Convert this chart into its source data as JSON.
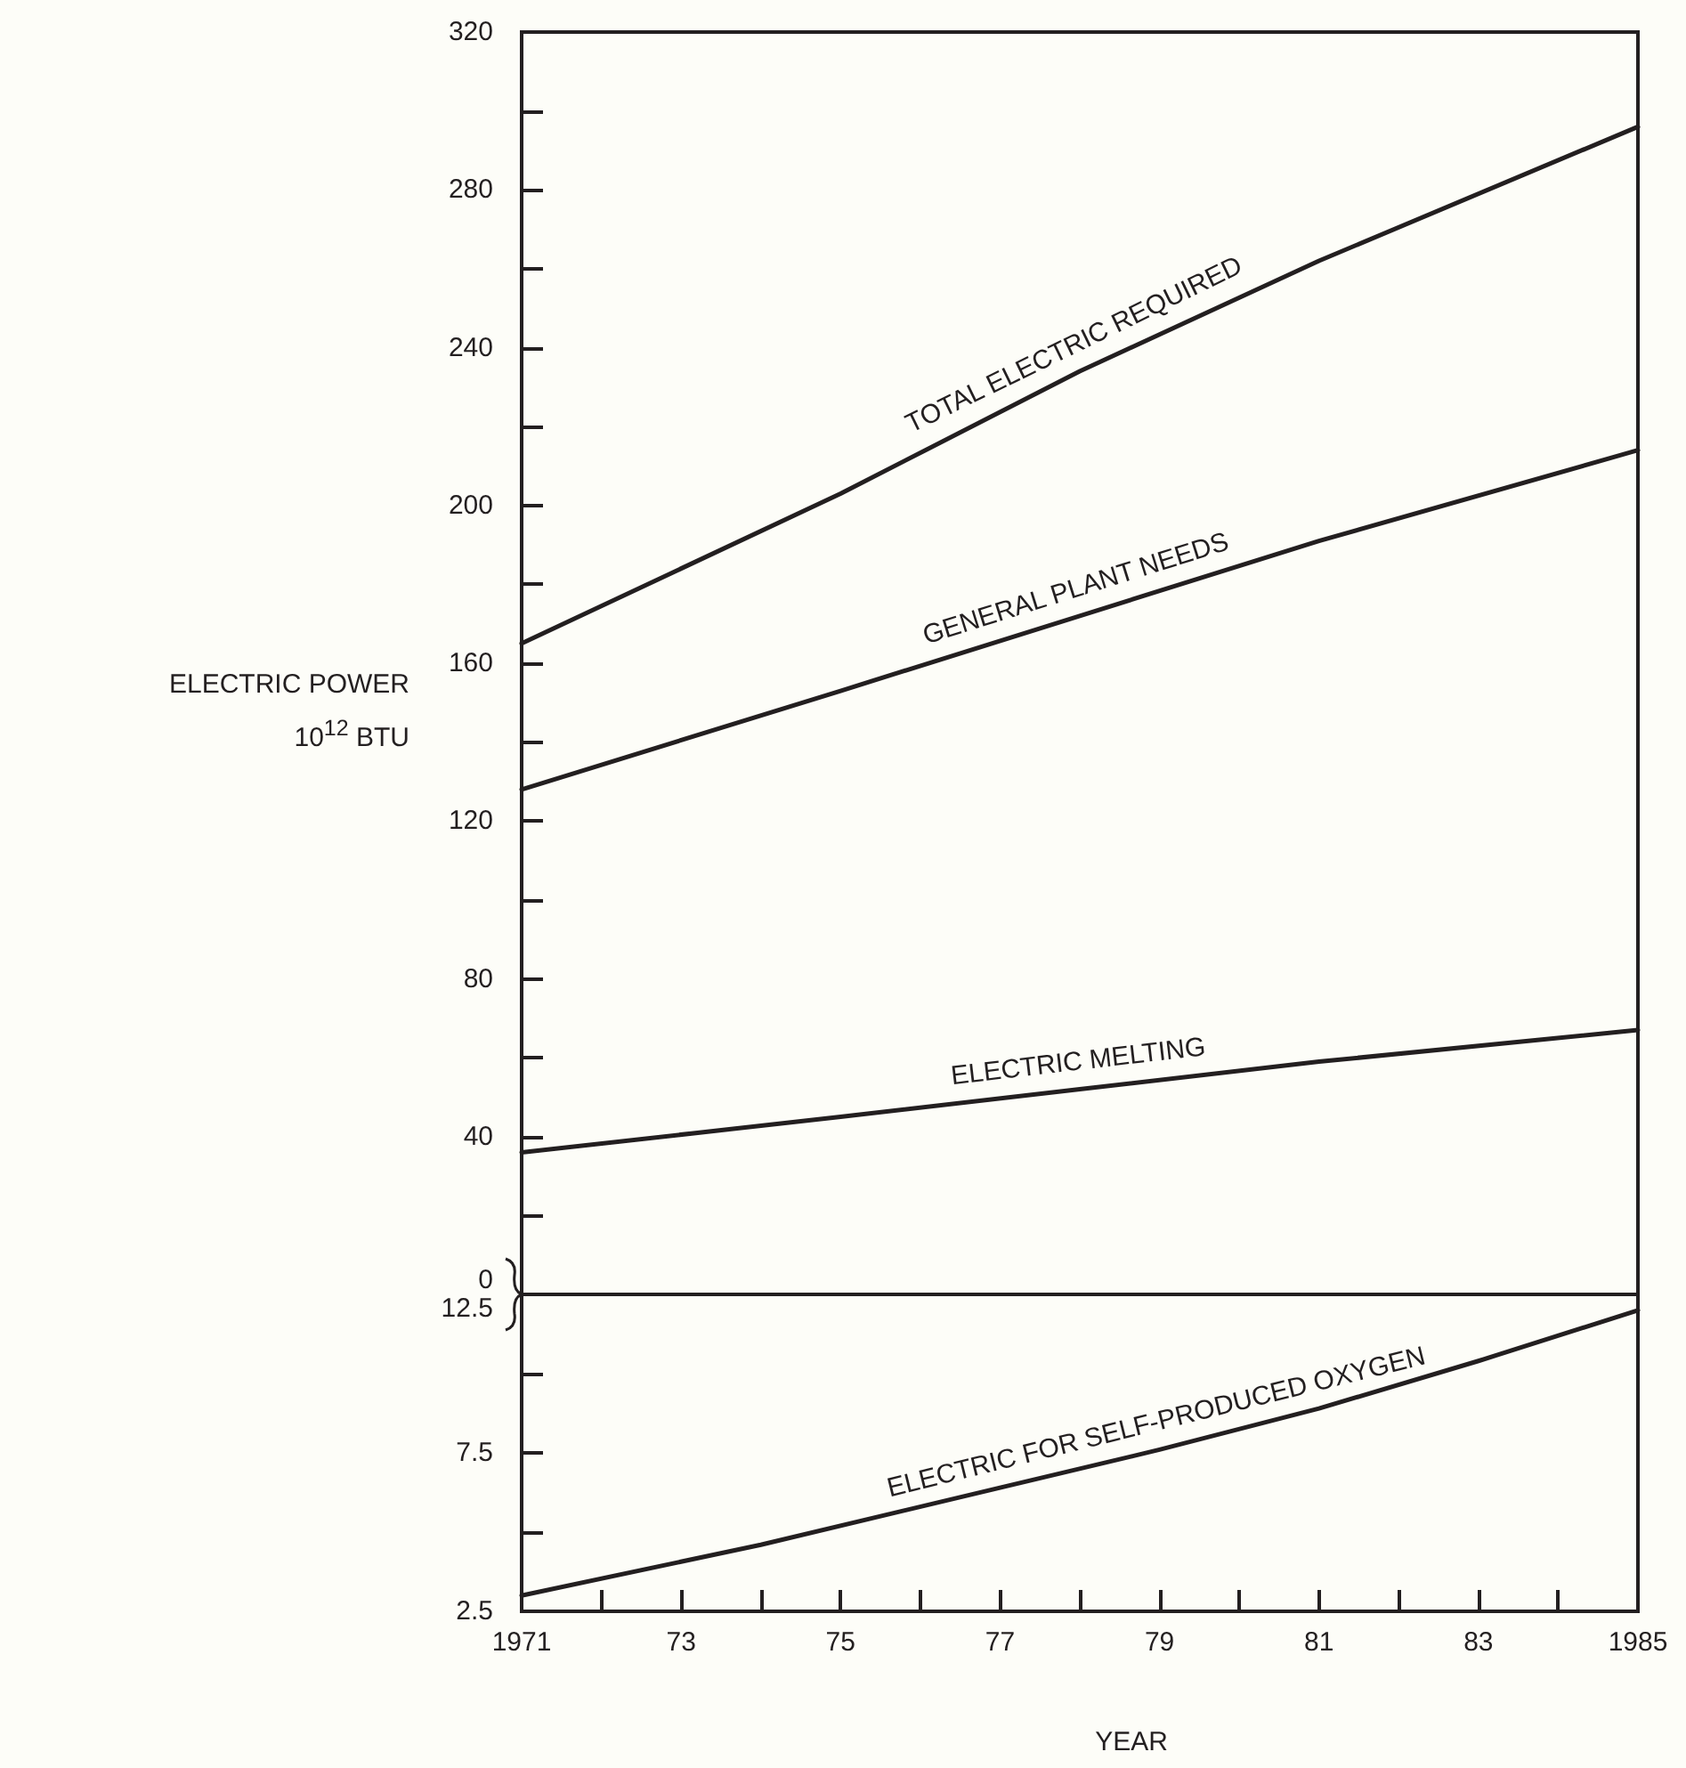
{
  "chart_data": [
    {
      "type": "line",
      "ylabel": "ELECTRIC POWER 10$^{12}$ BTU",
      "x": [
        1971,
        1975,
        1978,
        1981,
        1985
      ],
      "xlim": [
        1971,
        1985
      ],
      "ylim": [
        0,
        320
      ],
      "yticks": [
        0,
        {
          "value": 20,
          "label": null
        },
        40,
        {
          "value": 60,
          "label": null
        },
        80,
        {
          "value": 100,
          "label": null
        },
        120,
        {
          "value": 140,
          "label": null
        },
        160,
        {
          "value": 180,
          "label": null
        },
        200,
        {
          "value": 220,
          "label": null
        },
        240,
        {
          "value": 260,
          "label": null
        },
        280,
        {
          "value": 300,
          "label": null
        },
        320
      ],
      "tick_labels": "y",
      "marker": "none",
      "line_style": "solid",
      "series": [
        {
          "name": "TOTAL ELECTRIC REQUIRED",
          "color": "#231f20",
          "values": [
            165,
            203,
            234,
            262,
            296
          ]
        },
        {
          "name": "GENERAL PLANT NEEDS",
          "color": "#231f20",
          "values": [
            128,
            153,
            172,
            191,
            214
          ]
        },
        {
          "name": "ELECTRIC MELTING",
          "color": "#231f20",
          "values": [
            36,
            45,
            52,
            59,
            67
          ]
        }
      ]
    },
    {
      "type": "line",
      "xlabel": "YEAR",
      "x": [
        1971,
        1974,
        1977,
        1979,
        1981,
        1983,
        1985
      ],
      "xlim": [
        1971,
        1985
      ],
      "ylim": [
        2.5,
        12.5
      ],
      "yticks": [
        2.5,
        {
          "value": 5,
          "label": null
        },
        7.5,
        {
          "value": 10,
          "label": null
        },
        12.5
      ],
      "xticks": [
        1971,
        {
          "value": 1972,
          "label": null
        },
        {
          "value": 1973,
          "label": "73"
        },
        {
          "value": 1974,
          "label": null
        },
        {
          "value": 1975,
          "label": "75"
        },
        {
          "value": 1976,
          "label": null
        },
        {
          "value": 1977,
          "label": "77"
        },
        {
          "value": 1978,
          "label": null
        },
        {
          "value": 1979,
          "label": "79"
        },
        {
          "value": 1980,
          "label": null
        },
        {
          "value": 1981,
          "label": "81"
        },
        {
          "value": 1982,
          "label": null
        },
        {
          "value": 1983,
          "label": "83"
        },
        {
          "value": 1984,
          "label": null
        },
        1985
      ],
      "marker": "none",
      "line_style": "solid",
      "series": [
        {
          "name": "ELECTRIC FOR SELF-PRODUCED OXYGEN",
          "color": "#231f20",
          "values": [
            3.0,
            4.6,
            6.4,
            7.6,
            8.9,
            10.4,
            12.0
          ]
        }
      ]
    }
  ]
}
